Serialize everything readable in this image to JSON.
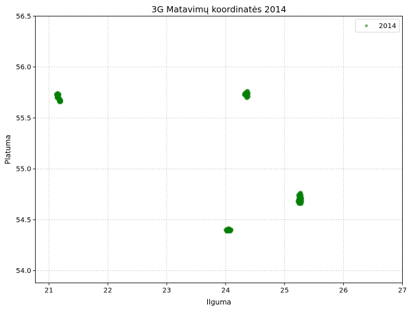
{
  "chart_data": {
    "type": "scatter",
    "title": "3G Matavimų koordinatės 2014",
    "xlabel": "Ilguma",
    "ylabel": "Platuma",
    "xlim": [
      20.77,
      27.0
    ],
    "ylim": [
      53.88,
      56.5
    ],
    "x_ticks": [
      "21",
      "22",
      "23",
      "24",
      "25",
      "26",
      "27"
    ],
    "y_ticks": [
      "54.0",
      "54.5",
      "55.0",
      "55.5",
      "56.0",
      "56.5"
    ],
    "grid": true,
    "legend_position": "top-right",
    "series": [
      {
        "name": "2014",
        "color": "#008000",
        "points": [
          [
            21.13,
            55.73
          ],
          [
            21.14,
            55.72
          ],
          [
            21.15,
            55.74
          ],
          [
            21.16,
            55.71
          ],
          [
            21.15,
            55.7
          ],
          [
            21.17,
            55.73
          ],
          [
            21.18,
            55.69
          ],
          [
            21.17,
            55.68
          ],
          [
            21.19,
            55.67
          ],
          [
            21.2,
            55.66
          ],
          [
            21.18,
            55.66
          ],
          [
            21.19,
            55.68
          ],
          [
            21.16,
            55.72
          ],
          [
            21.2,
            55.67
          ],
          [
            21.14,
            55.7
          ],
          [
            24.32,
            55.73
          ],
          [
            24.33,
            55.74
          ],
          [
            24.34,
            55.72
          ],
          [
            24.35,
            55.75
          ],
          [
            24.36,
            55.73
          ],
          [
            24.37,
            55.76
          ],
          [
            24.38,
            55.71
          ],
          [
            24.36,
            55.7
          ],
          [
            24.34,
            55.73
          ],
          [
            24.38,
            55.74
          ],
          [
            24.35,
            55.72
          ],
          [
            24.37,
            55.73
          ],
          [
            24.01,
            54.4
          ],
          [
            24.03,
            54.39
          ],
          [
            24.05,
            54.4
          ],
          [
            24.06,
            54.41
          ],
          [
            24.07,
            54.4
          ],
          [
            24.09,
            54.4
          ],
          [
            24.04,
            54.41
          ],
          [
            24.02,
            54.39
          ],
          [
            24.08,
            54.39
          ],
          [
            24.05,
            54.39
          ],
          [
            25.23,
            54.68
          ],
          [
            25.24,
            54.7
          ],
          [
            25.25,
            54.72
          ],
          [
            25.24,
            54.74
          ],
          [
            25.26,
            54.67
          ],
          [
            25.27,
            54.69
          ],
          [
            25.28,
            54.71
          ],
          [
            25.26,
            54.73
          ],
          [
            25.27,
            54.76
          ],
          [
            25.28,
            54.74
          ],
          [
            25.25,
            54.66
          ],
          [
            25.29,
            54.68
          ],
          [
            25.28,
            54.66
          ],
          [
            25.25,
            54.7
          ],
          [
            25.27,
            54.72
          ],
          [
            25.29,
            54.71
          ],
          [
            25.24,
            54.67
          ],
          [
            25.26,
            54.75
          ]
        ]
      }
    ]
  }
}
